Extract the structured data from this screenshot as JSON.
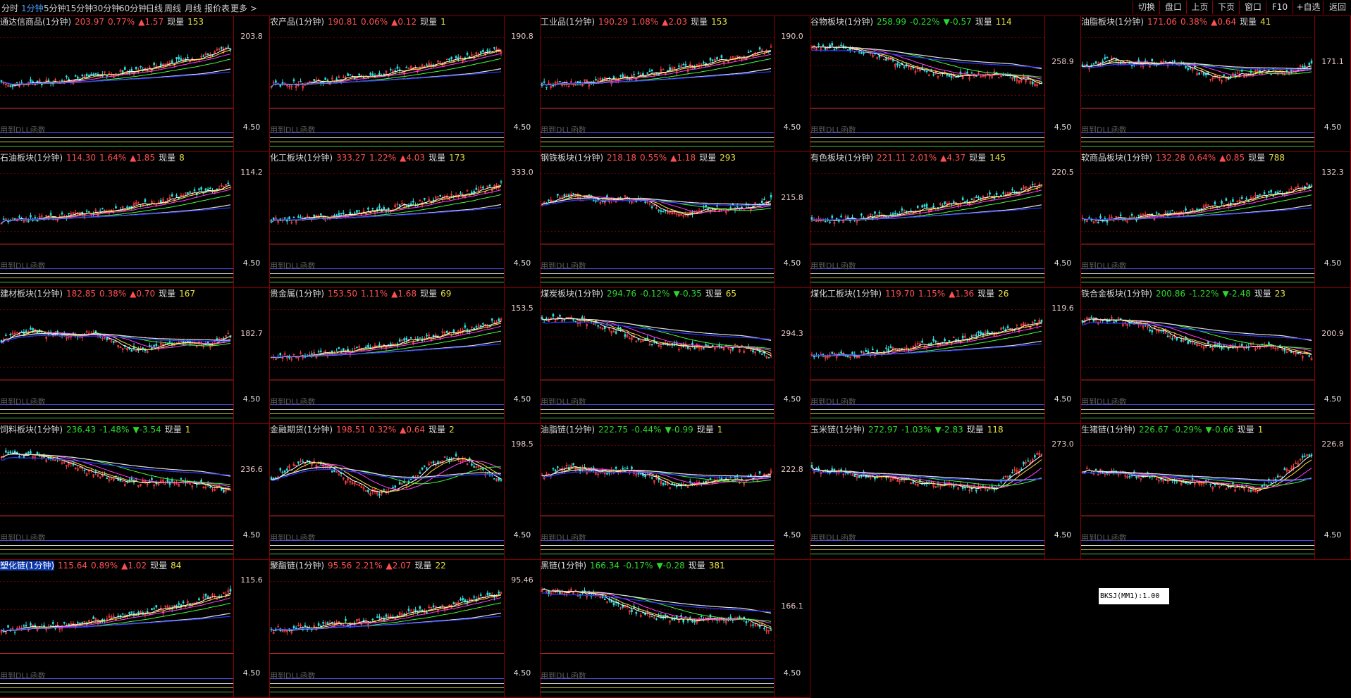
{
  "toolbar": {
    "periods": [
      {
        "label": "分时",
        "active": false
      },
      {
        "label": "1分钟",
        "active": true
      },
      {
        "label": "5分钟",
        "active": false
      },
      {
        "label": "15分钟",
        "active": false
      },
      {
        "label": "30分钟",
        "active": false
      },
      {
        "label": "60分钟",
        "active": false
      },
      {
        "label": "日线",
        "active": false
      },
      {
        "label": "周线",
        "active": false
      },
      {
        "label": "月线",
        "active": false
      },
      {
        "label": "报价表",
        "active": false
      },
      {
        "label": "更多 >",
        "active": false
      }
    ],
    "buttons": [
      "切换",
      "盘口",
      "上页",
      "下页",
      "窗口",
      "F10",
      "+自选",
      "返回"
    ]
  },
  "panels": [
    {
      "name": "通达信商品(1分钟)",
      "price": "203.97",
      "pct": "0.77%",
      "chg": "▲1.57",
      "dir": "up",
      "vol_label": "现量",
      "vol": "153",
      "axis_top": "203.8",
      "axis_bottom": "4.50",
      "sub": "用到DLL函数",
      "shape": "up",
      "selected": false
    },
    {
      "name": "农产品(1分钟)",
      "price": "190.81",
      "pct": "0.06%",
      "chg": "▲0.12",
      "dir": "up",
      "vol_label": "现量",
      "vol": "1",
      "axis_top": "190.8",
      "axis_bottom": "4.50",
      "sub": "用到DLL函数",
      "shape": "up",
      "selected": false
    },
    {
      "name": "工业品(1分钟)",
      "price": "190.29",
      "pct": "1.08%",
      "chg": "▲2.03",
      "dir": "up",
      "vol_label": "现量",
      "vol": "153",
      "axis_top": "190.0",
      "axis_bottom": "4.50",
      "sub": "用到DLL函数",
      "shape": "up",
      "selected": false
    },
    {
      "name": "谷物板块(1分钟)",
      "price": "258.99",
      "pct": "-0.22%",
      "chg": "▼-0.57",
      "dir": "dn",
      "vol_label": "现量",
      "vol": "114",
      "axis_top": "258.9",
      "axis_bottom": "4.50",
      "sub": "用到DLL函数",
      "shape": "down",
      "selected": false
    },
    {
      "name": "油脂板块(1分钟)",
      "price": "171.06",
      "pct": "0.38%",
      "chg": "▲0.64",
      "dir": "up",
      "vol_label": "现量",
      "vol": "41",
      "axis_top": "171.1",
      "axis_bottom": "4.50",
      "sub": "用到DLL函数",
      "shape": "flat",
      "selected": false
    },
    {
      "name": "石油板块(1分钟)",
      "price": "114.30",
      "pct": "1.64%",
      "chg": "▲1.85",
      "dir": "up",
      "vol_label": "现量",
      "vol": "8",
      "axis_top": "114.2",
      "axis_bottom": "4.50",
      "sub": "用到DLL函数",
      "shape": "up",
      "selected": false
    },
    {
      "name": "化工板块(1分钟)",
      "price": "333.27",
      "pct": "1.22%",
      "chg": "▲4.03",
      "dir": "up",
      "vol_label": "现量",
      "vol": "173",
      "axis_top": "333.0",
      "axis_bottom": "4.50",
      "sub": "用到DLL函数",
      "shape": "up",
      "selected": false
    },
    {
      "name": "钢铁板块(1分钟)",
      "price": "218.18",
      "pct": "0.55%",
      "chg": "▲1.18",
      "dir": "up",
      "vol_label": "现量",
      "vol": "293",
      "axis_top": "215.8",
      "axis_bottom": "4.50",
      "sub": "用到DLL函数",
      "shape": "flat",
      "selected": false
    },
    {
      "name": "有色板块(1分钟)",
      "price": "221.11",
      "pct": "2.01%",
      "chg": "▲4.37",
      "dir": "up",
      "vol_label": "现量",
      "vol": "145",
      "axis_top": "220.5",
      "axis_bottom": "4.50",
      "sub": "用到DLL函数",
      "shape": "up",
      "selected": false
    },
    {
      "name": "软商品板块(1分钟)",
      "price": "132.28",
      "pct": "0.64%",
      "chg": "▲0.85",
      "dir": "up",
      "vol_label": "现量",
      "vol": "788",
      "axis_top": "132.3",
      "axis_bottom": "4.50",
      "sub": "用到DLL函数",
      "shape": "up",
      "selected": false
    },
    {
      "name": "建材板块(1分钟)",
      "price": "182.85",
      "pct": "0.38%",
      "chg": "▲0.70",
      "dir": "up",
      "vol_label": "现量",
      "vol": "167",
      "axis_top": "182.7",
      "axis_bottom": "4.50",
      "sub": "用到DLL函数",
      "shape": "flat",
      "selected": false
    },
    {
      "name": "贵金属(1分钟)",
      "price": "153.50",
      "pct": "1.11%",
      "chg": "▲1.68",
      "dir": "up",
      "vol_label": "现量",
      "vol": "69",
      "axis_top": "153.5",
      "axis_bottom": "4.50",
      "sub": "用到DLL函数",
      "shape": "up",
      "selected": false
    },
    {
      "name": "煤炭板块(1分钟)",
      "price": "294.76",
      "pct": "-0.12%",
      "chg": "▼-0.35",
      "dir": "dn",
      "vol_label": "现量",
      "vol": "65",
      "axis_top": "294.3",
      "axis_bottom": "4.50",
      "sub": "用到DLL函数",
      "shape": "down",
      "selected": false
    },
    {
      "name": "煤化工板块(1分钟)",
      "price": "119.70",
      "pct": "1.15%",
      "chg": "▲1.36",
      "dir": "up",
      "vol_label": "现量",
      "vol": "26",
      "axis_top": "119.6",
      "axis_bottom": "4.50",
      "sub": "用到DLL函数",
      "shape": "up",
      "selected": false
    },
    {
      "name": "铁合金板块(1分钟)",
      "price": "200.86",
      "pct": "-1.22%",
      "chg": "▼-2.48",
      "dir": "dn",
      "vol_label": "现量",
      "vol": "23",
      "axis_top": "200.9",
      "axis_bottom": "4.50",
      "sub": "用到DLL函数",
      "shape": "down",
      "selected": false
    },
    {
      "name": "饲料板块(1分钟)",
      "price": "236.43",
      "pct": "-1.48%",
      "chg": "▼-3.54",
      "dir": "dn",
      "vol_label": "现量",
      "vol": "1",
      "axis_top": "236.6",
      "axis_bottom": "4.50",
      "sub": "用到DLL函数",
      "shape": "down",
      "selected": false
    },
    {
      "name": "金融期货(1分钟)",
      "price": "198.51",
      "pct": "0.32%",
      "chg": "▲0.64",
      "dir": "up",
      "vol_label": "现量",
      "vol": "2",
      "axis_top": "198.5",
      "axis_bottom": "4.50",
      "sub": "用到DLL函数",
      "shape": "wave",
      "selected": false
    },
    {
      "name": "油脂链(1分钟)",
      "price": "222.75",
      "pct": "-0.44%",
      "chg": "▼-0.99",
      "dir": "dn",
      "vol_label": "现量",
      "vol": "1",
      "axis_top": "222.8",
      "axis_bottom": "4.50",
      "sub": "用到DLL函数",
      "shape": "flat",
      "selected": false
    },
    {
      "name": "玉米链(1分钟)",
      "price": "272.97",
      "pct": "-1.03%",
      "chg": "▼-2.83",
      "dir": "dn",
      "vol_label": "现量",
      "vol": "118",
      "axis_top": "273.0",
      "axis_bottom": "4.50",
      "sub": "用到DLL函数",
      "shape": "vee",
      "selected": false
    },
    {
      "name": "生猪链(1分钟)",
      "price": "226.67",
      "pct": "-0.29%",
      "chg": "▼-0.66",
      "dir": "dn",
      "vol_label": "现量",
      "vol": "1",
      "axis_top": "226.8",
      "axis_bottom": "4.50",
      "sub": "用到DLL函数",
      "shape": "vee",
      "selected": false
    },
    {
      "name": "塑化链(1分钟)",
      "price": "115.64",
      "pct": "0.89%",
      "chg": "▲1.02",
      "dir": "up",
      "vol_label": "现量",
      "vol": "84",
      "axis_top": "115.6",
      "axis_bottom": "4.50",
      "sub": "用到DLL函数",
      "shape": "up",
      "selected": true
    },
    {
      "name": "聚酯链(1分钟)",
      "price": "95.56",
      "pct": "2.21%",
      "chg": "▲2.07",
      "dir": "up",
      "vol_label": "现量",
      "vol": "22",
      "axis_top": "95.46",
      "axis_bottom": "4.50",
      "sub": "用到DLL函数",
      "shape": "up",
      "selected": false
    },
    {
      "name": "黑链(1分钟)",
      "price": "166.34",
      "pct": "-0.17%",
      "chg": "▼-0.28",
      "dir": "dn",
      "vol_label": "现量",
      "vol": "381",
      "axis_top": "166.1",
      "axis_bottom": "4.50",
      "sub": "用到DLL函数",
      "shape": "down",
      "selected": false
    }
  ],
  "indicator_label": "BKSJ(MM1):1.00",
  "colors": {
    "border": "#8a0000",
    "up": "#ff5050",
    "down": "#2cd82c",
    "volume": "#e8e040",
    "ma_blue": "#2a3cff",
    "ma_white": "#e8e8e8"
  }
}
